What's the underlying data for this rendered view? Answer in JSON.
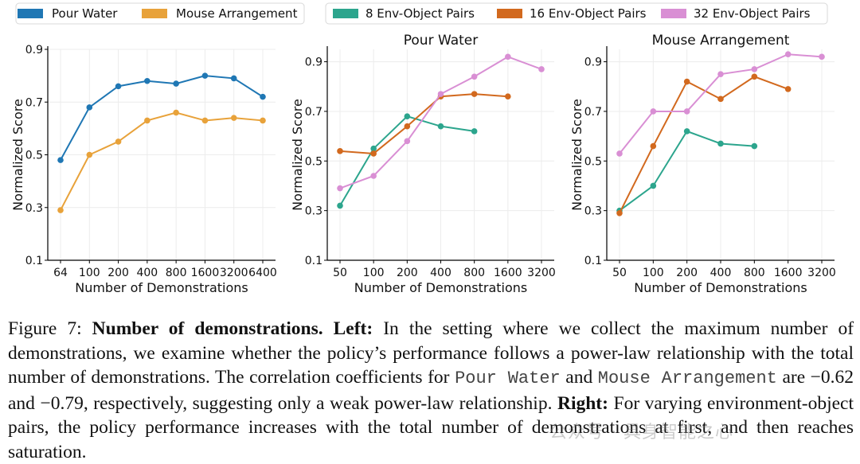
{
  "chart_data": [
    {
      "type": "line",
      "title": "",
      "xlabel": "Number of Demonstrations",
      "ylabel": "Normalized Score",
      "categories": [
        "64",
        "100",
        "200",
        "400",
        "800",
        "1600",
        "3200",
        "6400"
      ],
      "yticks": [
        "0.1",
        "0.3",
        "0.5",
        "0.7",
        "0.9"
      ],
      "ylim": [
        0.1,
        0.9
      ],
      "legend_position": "top",
      "grid": true,
      "series": [
        {
          "name": "Pour Water",
          "color": "#1f77b4",
          "values": [
            0.48,
            0.68,
            0.76,
            0.78,
            0.77,
            0.8,
            0.79,
            0.72
          ]
        },
        {
          "name": "Mouse Arrangement",
          "color": "#e8a23a",
          "values": [
            0.29,
            0.5,
            0.55,
            0.63,
            0.66,
            0.63,
            0.64,
            0.63
          ]
        }
      ]
    },
    {
      "type": "line",
      "title": "Pour Water",
      "xlabel": "Number of Demonstrations",
      "ylabel": "Normalized Score",
      "categories": [
        "50",
        "100",
        "200",
        "400",
        "800",
        "1600",
        "3200"
      ],
      "yticks": [
        "0.1",
        "0.3",
        "0.5",
        "0.7",
        "0.9"
      ],
      "ylim": [
        0.1,
        0.95
      ],
      "legend_position": "top",
      "grid": true,
      "series": [
        {
          "name": "8 Env-Object Pairs",
          "color": "#2ca58d",
          "values": [
            0.32,
            0.55,
            0.68,
            0.64,
            0.62,
            null,
            null
          ]
        },
        {
          "name": "16 Env-Object Pairs",
          "color": "#d2691e",
          "values": [
            0.54,
            0.53,
            0.64,
            0.76,
            0.77,
            0.76,
            null
          ]
        },
        {
          "name": "32 Env-Object Pairs",
          "color": "#d98fd4",
          "values": [
            0.39,
            0.44,
            0.58,
            0.77,
            0.84,
            0.92,
            0.87
          ]
        }
      ]
    },
    {
      "type": "line",
      "title": "Mouse Arrangement",
      "xlabel": "Number of Demonstrations",
      "ylabel": "Normalized Score",
      "categories": [
        "50",
        "100",
        "200",
        "400",
        "800",
        "1600",
        "3200"
      ],
      "yticks": [
        "0.1",
        "0.3",
        "0.5",
        "0.7",
        "0.9"
      ],
      "ylim": [
        0.1,
        0.95
      ],
      "legend_position": "top",
      "grid": true,
      "series": [
        {
          "name": "8 Env-Object Pairs",
          "color": "#2ca58d",
          "values": [
            0.3,
            0.4,
            0.62,
            0.57,
            0.56,
            null,
            null
          ]
        },
        {
          "name": "16 Env-Object Pairs",
          "color": "#d2691e",
          "values": [
            0.29,
            0.56,
            0.82,
            0.75,
            0.84,
            0.79,
            null
          ]
        },
        {
          "name": "32 Env-Object Pairs",
          "color": "#d98fd4",
          "values": [
            0.53,
            0.7,
            0.7,
            0.85,
            0.87,
            0.93,
            0.92
          ]
        }
      ]
    }
  ],
  "caption": {
    "figure_label": "Figure 7:",
    "bold_title": "Number of demonstrations.",
    "left_label": "Left:",
    "left_text_1": "In the setting where we collect the maximum number of demonstrations, we examine whether the policy’s performance follows a power-law relationship with the total number of demonstrations. The correlation coefficients for",
    "code_1": "Pour Water",
    "and_text": "and",
    "code_2": "Mouse Arrangement",
    "left_text_2": "are −0.62 and −0.79, respectively, suggesting only a weak power-law relationship.",
    "right_label": "Right:",
    "right_text": "For varying environment-object pairs, the policy performance increases with the total number of demonstrations at first, and then reaches saturation."
  },
  "watermark": "公众号 · 具身智能之心"
}
